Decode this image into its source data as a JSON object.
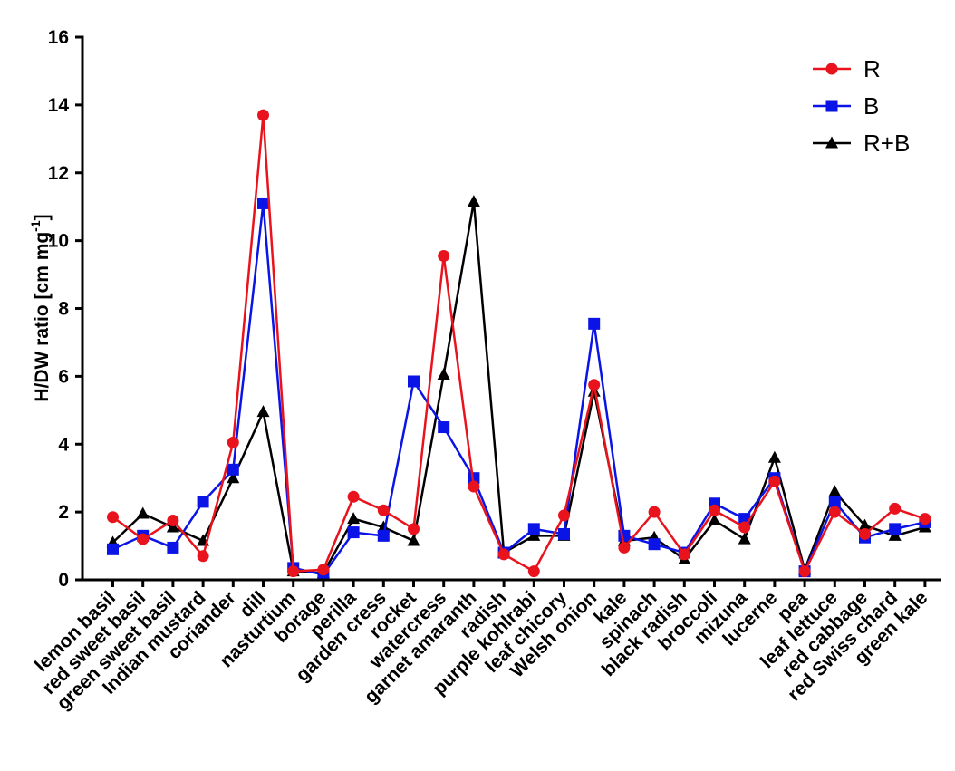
{
  "chart_data": {
    "type": "line",
    "title": "",
    "xlabel": "",
    "ylabel": {
      "main": "H/DW ratio [cm mg",
      "sup": "-1",
      "close": "]"
    },
    "ylim": [
      0,
      16
    ],
    "yticks": [
      "0",
      "2",
      "4",
      "6",
      "8",
      "10",
      "12",
      "14",
      "16"
    ],
    "legend_position": "top-right",
    "categories": [
      "lemon basil",
      "red sweet basil",
      "green sweet basil",
      "Indian mustard",
      "coriander",
      "dill",
      "nasturtium",
      "borage",
      "perilla",
      "garden cress",
      "rocket",
      "watercress",
      "garnet amaranth",
      "radish",
      "purple kohlrabi",
      "leaf chicory",
      "Welsh onion",
      "kale",
      "spinach",
      "black radish",
      "broccoli",
      "mizuna",
      "lucerne",
      "pea",
      "leaf lettuce",
      "red cabbage",
      "red Swiss chard",
      "green kale"
    ],
    "series": [
      {
        "name": "R+B",
        "color": "#000000",
        "marker": "triangle",
        "values": [
          1.1,
          1.95,
          1.55,
          1.15,
          3.0,
          4.95,
          0.25,
          0.2,
          1.8,
          1.55,
          1.15,
          6.05,
          11.15,
          0.8,
          1.3,
          1.3,
          5.55,
          1.15,
          1.25,
          0.6,
          1.75,
          1.2,
          3.6,
          0.3,
          2.6,
          1.6,
          1.3,
          1.55
        ]
      },
      {
        "name": "B",
        "color": "#0a14e6",
        "marker": "square",
        "values": [
          0.9,
          1.3,
          0.95,
          2.3,
          3.25,
          11.1,
          0.35,
          0.15,
          1.4,
          1.3,
          5.85,
          4.5,
          3.0,
          0.8,
          1.5,
          1.35,
          7.55,
          1.3,
          1.05,
          0.8,
          2.25,
          1.8,
          3.0,
          0.25,
          2.3,
          1.25,
          1.5,
          1.7
        ]
      },
      {
        "name": "R",
        "color": "#e8131c",
        "marker": "circle",
        "values": [
          1.85,
          1.2,
          1.75,
          0.7,
          4.05,
          13.7,
          0.25,
          0.3,
          2.45,
          2.05,
          1.5,
          9.55,
          2.75,
          0.75,
          0.25,
          1.9,
          5.75,
          0.95,
          2.0,
          0.75,
          2.05,
          1.55,
          2.9,
          0.25,
          2.0,
          1.35,
          2.1,
          1.8
        ]
      }
    ],
    "legend_order": [
      "R",
      "B",
      "R+B"
    ]
  }
}
